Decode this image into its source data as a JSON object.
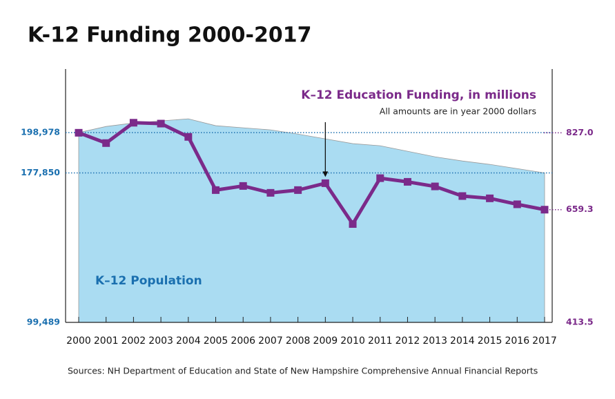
{
  "chart_data": {
    "type": "area-line",
    "title": "K-12 Funding 2000-2017",
    "annotation": "All amounts are in year 2000 dollars",
    "source": "Sources: NH Department of Education and State of New Hampshire Comprehensive Annual Financial Reports",
    "categories": [
      "2000",
      "2001",
      "2002",
      "2003",
      "2004",
      "2005",
      "2006",
      "2007",
      "2008",
      "2009",
      "2010",
      "2011",
      "2012",
      "2013",
      "2014",
      "2015",
      "2016",
      "2017"
    ],
    "series": [
      {
        "name": "K–12 Population",
        "type": "area",
        "axis": "y",
        "color": "#aadcf2",
        "values": [
          198978,
          202200,
          204000,
          205100,
          206200,
          202600,
          201500,
          200400,
          198200,
          195700,
          193200,
          192100,
          189200,
          186300,
          184100,
          182300,
          180100,
          177850
        ]
      },
      {
        "name": "K–12 Education Funding, in millions",
        "type": "line",
        "axis": "y2",
        "color": "#7b2a8a",
        "values": [
          827.0,
          804.5,
          848.9,
          847,
          818,
          702,
          711,
          696,
          702,
          717,
          628,
          728,
          720,
          710,
          689,
          684,
          671,
          659.3
        ]
      }
    ],
    "ylim": [
      99489,
      232300
    ],
    "yticks": [
      {
        "value": 99489,
        "label": "99,489"
      },
      {
        "value": 177850,
        "label": "177,850"
      },
      {
        "value": 198978,
        "label": "198,978"
      }
    ],
    "y2lim": [
      413.5,
      966
    ],
    "y2ticks": [
      413.5,
      659.3,
      {
        "value": 827,
        "label": "827.0"
      }
    ]
  }
}
